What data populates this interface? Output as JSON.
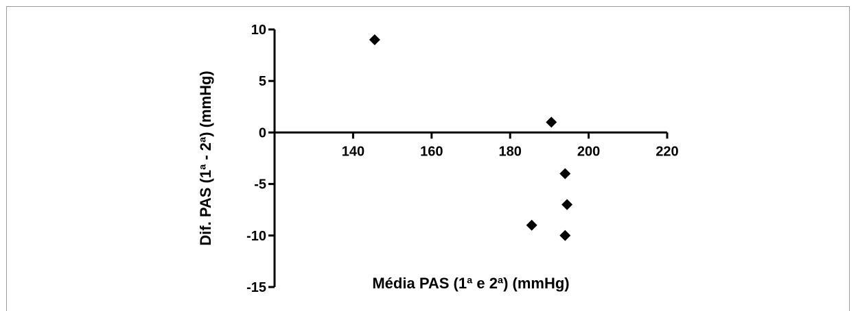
{
  "chart_data": {
    "type": "scatter",
    "title": "",
    "xlabel": "Média PAS (1ª e 2ª) (mmHg)",
    "ylabel": "Dif. PAS (1ª - 2ª) (mmHg)",
    "xlim": [
      120,
      220
    ],
    "ylim": [
      -15,
      10
    ],
    "x_ticks": [
      140,
      160,
      180,
      200,
      220
    ],
    "y_ticks": [
      10,
      5,
      0,
      -5,
      -10,
      -15
    ],
    "grid": false,
    "marker": "diamond",
    "marker_color": "#000000",
    "points": [
      {
        "x": 145.5,
        "y": 9
      },
      {
        "x": 190.5,
        "y": 1
      },
      {
        "x": 194,
        "y": -4
      },
      {
        "x": 194.5,
        "y": -7
      },
      {
        "x": 185.5,
        "y": -9
      },
      {
        "x": 194,
        "y": -10
      }
    ]
  }
}
